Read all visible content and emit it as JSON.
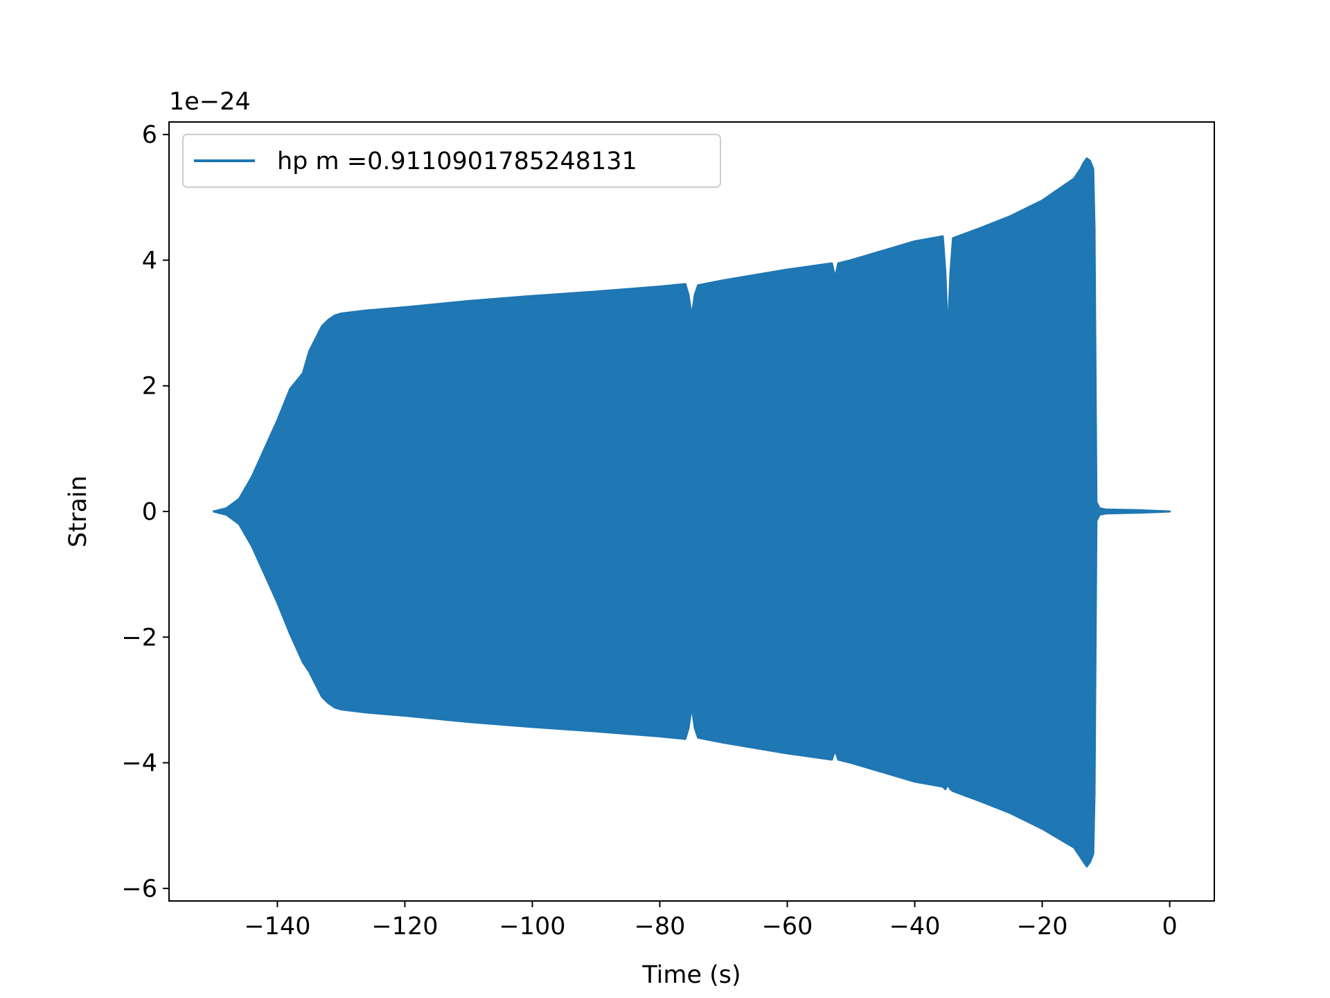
{
  "chart_data": {
    "type": "area",
    "title": "",
    "xlabel": "Time (s)",
    "ylabel": "Strain",
    "y_offset_text": "1e−24",
    "xlim": [
      -157,
      7
    ],
    "ylim": [
      -6.2,
      6.2
    ],
    "x_ticks": [
      -140,
      -120,
      -100,
      -80,
      -60,
      -40,
      -20,
      0
    ],
    "x_tick_labels": [
      "−140",
      "−120",
      "−100",
      "−80",
      "−60",
      "−40",
      "−20",
      "0"
    ],
    "y_ticks": [
      -6,
      -4,
      -2,
      0,
      2,
      4,
      6
    ],
    "y_tick_labels": [
      "−6",
      "−4",
      "−2",
      "0",
      "2",
      "4",
      "6"
    ],
    "legend": {
      "placement": "top-left",
      "entries": [
        "hp m =0.9110901785248131"
      ]
    },
    "grid": false,
    "series": [
      {
        "name": "hp m =0.9110901785248131",
        "color": "#1f77b4",
        "envelope_x": [
          -150,
          -148,
          -146,
          -144,
          -142,
          -140,
          -138,
          -136,
          -135,
          -134,
          -133,
          -132,
          -131,
          -130,
          -126,
          -120,
          -110,
          -100,
          -90,
          -80,
          -76,
          -75.5,
          -75,
          -74.5,
          -74,
          -70,
          -60,
          -53,
          -52.5,
          -52,
          -50,
          -40,
          -35.6,
          -35.2,
          -34.8,
          -34.4,
          -34,
          -30,
          -25,
          -20,
          -15,
          -14,
          -13.5,
          -13,
          -12.5,
          -12,
          -11.8,
          -11.5,
          -11,
          -10,
          -5,
          0
        ],
        "envelope_upper": [
          0,
          0.05,
          0.2,
          0.55,
          1.0,
          1.45,
          1.95,
          2.2,
          2.55,
          2.75,
          2.95,
          3.05,
          3.12,
          3.15,
          3.2,
          3.25,
          3.35,
          3.43,
          3.5,
          3.58,
          3.62,
          3.45,
          3.1,
          3.45,
          3.6,
          3.68,
          3.85,
          3.95,
          3.72,
          3.95,
          4.0,
          4.3,
          4.38,
          3.8,
          2.8,
          3.8,
          4.35,
          4.5,
          4.7,
          4.95,
          5.3,
          5.45,
          5.55,
          5.62,
          5.58,
          5.45,
          4.5,
          0.15,
          0.05,
          0.03,
          0.02,
          0
        ],
        "envelope_lower": [
          0,
          -0.05,
          -0.2,
          -0.55,
          -1.0,
          -1.45,
          -1.95,
          -2.4,
          -2.55,
          -2.75,
          -2.95,
          -3.05,
          -3.12,
          -3.15,
          -3.2,
          -3.25,
          -3.35,
          -3.43,
          -3.5,
          -3.58,
          -3.62,
          -3.45,
          -3.1,
          -3.45,
          -3.6,
          -3.68,
          -3.85,
          -3.95,
          -3.8,
          -3.95,
          -4.0,
          -4.3,
          -4.38,
          -4.42,
          -4.35,
          -4.42,
          -4.45,
          -4.6,
          -4.8,
          -5.05,
          -5.35,
          -5.5,
          -5.58,
          -5.65,
          -5.58,
          -5.45,
          -4.5,
          -0.15,
          -0.05,
          -0.03,
          -0.02,
          0
        ]
      }
    ]
  }
}
